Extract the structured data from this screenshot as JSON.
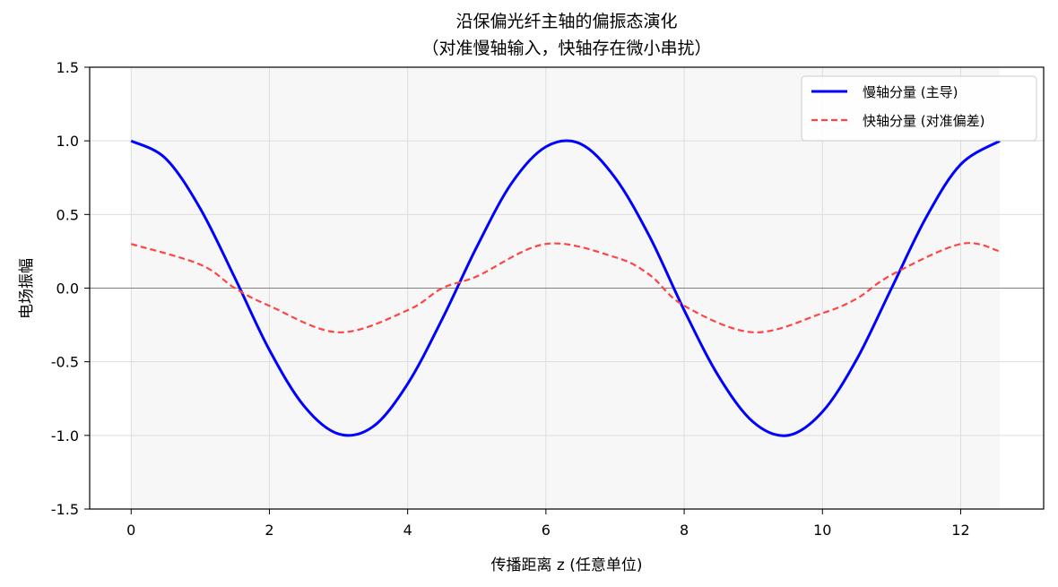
{
  "chart_data": {
    "type": "line",
    "title_line1": "沿保偏光纤主轴的偏振态演化",
    "title_line2": "（对准慢轴输入，快轴存在微小串扰）",
    "xlabel": "传播距离 z (任意单位)",
    "ylabel": "电场振幅",
    "xlim": [
      -0.6,
      13.2
    ],
    "ylim": [
      -1.5,
      1.5
    ],
    "x_ticks": [
      0,
      2,
      4,
      6,
      8,
      10,
      12
    ],
    "x_tick_labels": [
      "0",
      "2",
      "4",
      "6",
      "8",
      "10",
      "12"
    ],
    "y_ticks": [
      1.5,
      1.0,
      0.5,
      0.0,
      -0.5,
      -1.0,
      -1.5
    ],
    "y_tick_labels": [
      "1.5",
      "1.0",
      "0.5",
      "0.0",
      "-0.5",
      "-1.0",
      "-1.5"
    ],
    "grid": true,
    "legend_position": "top-right",
    "shaded_x_range": [
      0,
      12.566
    ],
    "zero_line": 0,
    "series": [
      {
        "name": "慢轴分量 (主导)",
        "color": "#0000ff",
        "style": "solid",
        "x": [
          0,
          0.5,
          1.0,
          1.5,
          2.0,
          2.5,
          3.0,
          3.5,
          4.0,
          4.5,
          5.0,
          5.5,
          6.0,
          6.5,
          7.0,
          7.5,
          8.0,
          8.5,
          9.0,
          9.5,
          10.0,
          10.5,
          11.0,
          11.5,
          12.0,
          12.566
        ],
        "y": [
          1.0,
          0.88,
          0.54,
          0.07,
          -0.42,
          -0.8,
          -0.99,
          -0.94,
          -0.65,
          -0.21,
          0.28,
          0.71,
          0.96,
          0.98,
          0.75,
          0.35,
          -0.15,
          -0.6,
          -0.91,
          -1.0,
          -0.84,
          -0.48,
          0.0,
          0.48,
          0.84,
          1.0
        ]
      },
      {
        "name": "快轴分量 (对准偏差)",
        "color": "#ff4444",
        "style": "dashed",
        "x": [
          0,
          1,
          1.5,
          2,
          3,
          4,
          4.5,
          5,
          6,
          7,
          7.5,
          8,
          9,
          10,
          10.5,
          11,
          12,
          12.566
        ],
        "y": [
          0.3,
          0.16,
          0.0,
          -0.12,
          -0.3,
          -0.15,
          0.0,
          0.08,
          0.3,
          0.21,
          0.09,
          -0.12,
          -0.3,
          -0.17,
          -0.07,
          0.09,
          0.3,
          0.25
        ]
      }
    ]
  }
}
